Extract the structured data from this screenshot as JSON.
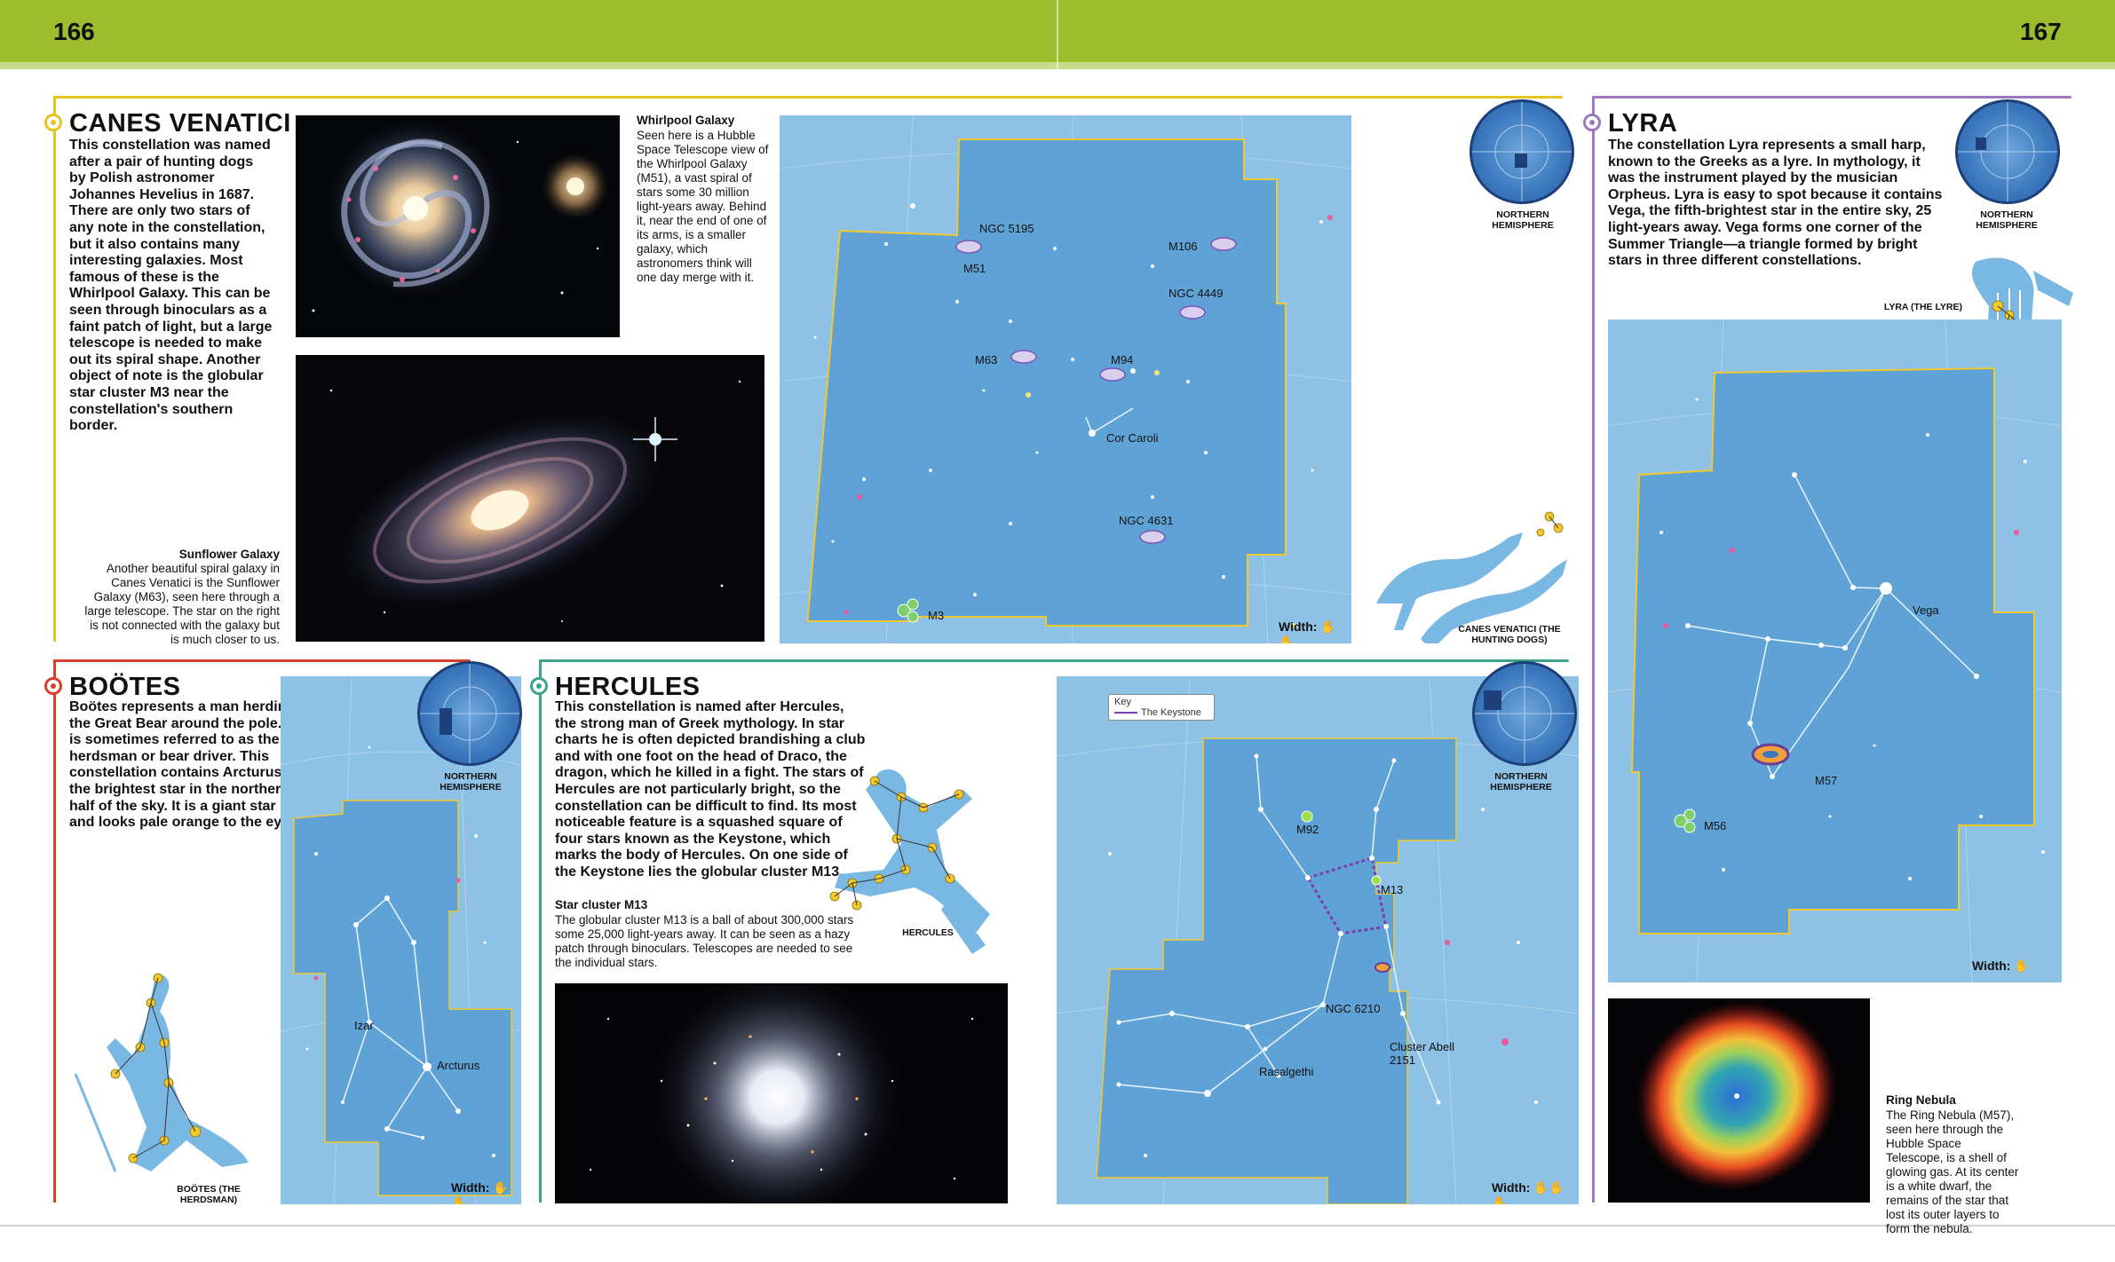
{
  "page_numbers": {
    "left": "166",
    "right": "167"
  },
  "canes": {
    "title": "CANES VENATICI",
    "body": "This constellation was named after a pair of hunting dogs by Polish astronomer Johannes Hevelius in 1687. There are only two stars of any note in the constellation, but it also contains many interesting galaxies. Most famous of these is the Whirlpool Galaxy. This can be seen through binoculars as a faint patch of light, but a large telescope is needed to make out its spiral shape. Another object of note is the globular star cluster M3 near the constellation's southern border.",
    "whirlpool_title": "Whirlpool Galaxy",
    "whirlpool_text": "Seen here is a Hubble Space Telescope view of the Whirlpool Galaxy (M51), a vast spiral of stars some 30 million light-years away. Behind it, near the end of one of its arms, is a smaller galaxy, which astronomers think will one day merge with it.",
    "sunflower_title": "Sunflower Galaxy",
    "sunflower_text": "Another beautiful spiral galaxy in Canes Venatici is the Sunflower Galaxy (M63), seen here through a large telescope. The star on the right is not connected with the galaxy but is much closer to us.",
    "map_labels": {
      "ngc5195": "NGC 5195",
      "m51": "M51",
      "m106": "M106",
      "ngc4449": "NGC 4449",
      "m63": "M63",
      "m94": "M94",
      "cor_caroli": "Cor Caroli",
      "ngc4631": "NGC 4631",
      "m3": "M3"
    },
    "width": "Width: ✋✋",
    "hemisphere": "NORTHERN HEMISPHERE",
    "figure_label": "CANES VENATICI (THE HUNTING DOGS)"
  },
  "lyra": {
    "title": "LYRA",
    "body": "The constellation Lyra represents a small harp, known to the Greeks as a lyre. In mythology, it was the instrument played by the musician Orpheus. Lyra is easy to spot because it contains Vega, the fifth-brightest star in the entire sky, 25 light-years away. Vega forms one corner of the Summer Triangle—a triangle formed by bright stars in three different constellations.",
    "hemisphere": "NORTHERN HEMISPHERE",
    "figure_label": "LYRA (THE LYRE)",
    "map_labels": {
      "vega": "Vega",
      "m57": "M57",
      "m56": "M56"
    },
    "width": "Width: ✋",
    "ring_title": "Ring Nebula",
    "ring_text": "The Ring Nebula (M57), seen here through the Hubble Space Telescope, is a shell of glowing gas. At its center is a white dwarf, the remains of the star that lost its outer layers to form the nebula."
  },
  "bootes": {
    "title": "BOÖTES",
    "body": "Boötes represents a man herding the Great Bear around the pole. He is sometimes referred to as the herdsman or bear driver. This constellation contains Arcturus, the brightest star in the northern half of the sky. It is a giant star and looks pale orange to the eye.",
    "hemisphere": "NORTHERN HEMISPHERE",
    "map_labels": {
      "izar": "Izar",
      "arcturus": "Arcturus"
    },
    "width": "Width: ✋✋",
    "figure_label": "BOÖTES (THE HERDSMAN)"
  },
  "hercules": {
    "title": "HERCULES",
    "body": "This constellation is named after Hercules, the strong man of Greek mythology. In star charts he is often depicted brandishing a club and with one foot on the head of Draco, the dragon, which he killed in a fight. The stars of Hercules are not particularly bright, so the constellation can be difficult to find. Its most noticeable feature is a squashed square of four stars known as the Keystone, which marks the body of Hercules. On one side of the Keystone lies the globular cluster M13.",
    "figure_label": "HERCULES",
    "m13_title": "Star cluster M13",
    "m13_text": "The globular cluster M13 is a ball of about 300,000 stars some 25,000 light-years away. It can be seen as a hazy patch through binoculars. Telescopes are needed to see the individual stars.",
    "key_title": "Key",
    "key_item": "The Keystone",
    "hemisphere": "NORTHERN HEMISPHERE",
    "map_labels": {
      "m92": "M92",
      "m13": "M13",
      "ngc6210": "NGC 6210",
      "cluster": "Cluster Abell 2151",
      "rasalgethi": "Rasalgethi"
    },
    "width": "Width: ✋✋✋"
  },
  "colors": {
    "header_green": "#9dbd2c",
    "canes_yellow": "#e8c21e",
    "lyra_purple": "#9b79c1",
    "bootes_red": "#d8402a",
    "hercules_teal": "#3aa58a",
    "map_blue": "#8ec1e6",
    "constellation_blue": "#5fa2d6"
  }
}
